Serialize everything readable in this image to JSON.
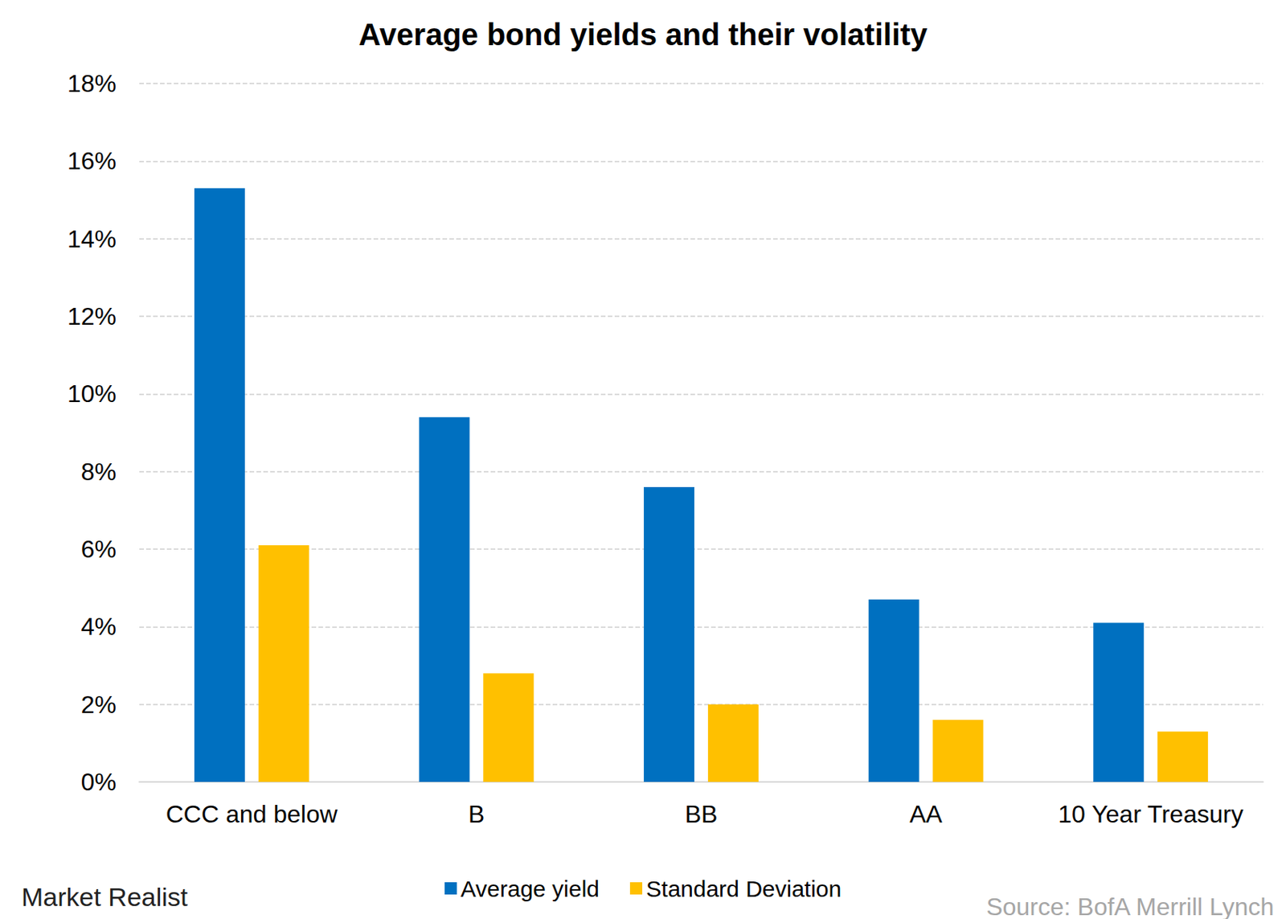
{
  "chart_data": {
    "type": "bar",
    "title": "Average bond yields and their volatility",
    "categories": [
      "CCC and below",
      "B",
      "BB",
      "AA",
      "10 Year Treasury"
    ],
    "series": [
      {
        "name": "Average yield",
        "color": "#0070c0",
        "values": [
          15.3,
          9.4,
          7.6,
          4.7,
          4.1
        ]
      },
      {
        "name": "Standard Deviation",
        "color": "#ffc000",
        "values": [
          6.1,
          2.8,
          2.0,
          1.6,
          1.3
        ]
      }
    ],
    "ylim": [
      0,
      18
    ],
    "yticks": [
      {
        "value": 0,
        "label": "0%"
      },
      {
        "value": 2,
        "label": "2%"
      },
      {
        "value": 4,
        "label": "4%"
      },
      {
        "value": 6,
        "label": "6%"
      },
      {
        "value": 8,
        "label": "8%"
      },
      {
        "value": 10,
        "label": "10%"
      },
      {
        "value": 12,
        "label": "12%"
      },
      {
        "value": 14,
        "label": "14%"
      },
      {
        "value": 16,
        "label": "16%"
      },
      {
        "value": 18,
        "label": "18%"
      }
    ],
    "grid": true,
    "legend": "bottom",
    "data_labels": false,
    "annotations": [
      "Market Realist",
      "Source: BofA Merrill Lynch"
    ]
  }
}
